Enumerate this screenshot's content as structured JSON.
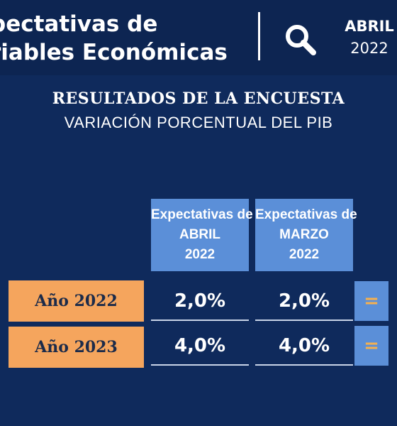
{
  "header": {
    "title_line1": "pectativas de",
    "title_line2": "riables Económicas",
    "search_icon": "search-icon",
    "month": "ABRIL",
    "year": "2022"
  },
  "survey": {
    "heading": "RESULTADOS DE LA ENCUESTA",
    "subheading": "VARIACIÓN PORCENTUAL DEL PIB"
  },
  "table": {
    "columns": [
      {
        "line1": "Expectativas de",
        "line2": "ABRIL",
        "line3": "2022"
      },
      {
        "line1": "Expectativas de",
        "line2": "MARZO",
        "line3": "2022"
      }
    ],
    "rows": [
      {
        "label": "Año 2022",
        "april": "2,0%",
        "march": "2,0%",
        "change": "="
      },
      {
        "label": "Año 2023",
        "april": "4,0%",
        "march": "4,0%",
        "change": "="
      }
    ]
  },
  "colors": {
    "background": "#0f2a5c",
    "column_header": "#5b8fd8",
    "row_label": "#f5a55d",
    "equal_mark": "#f5b04f"
  }
}
